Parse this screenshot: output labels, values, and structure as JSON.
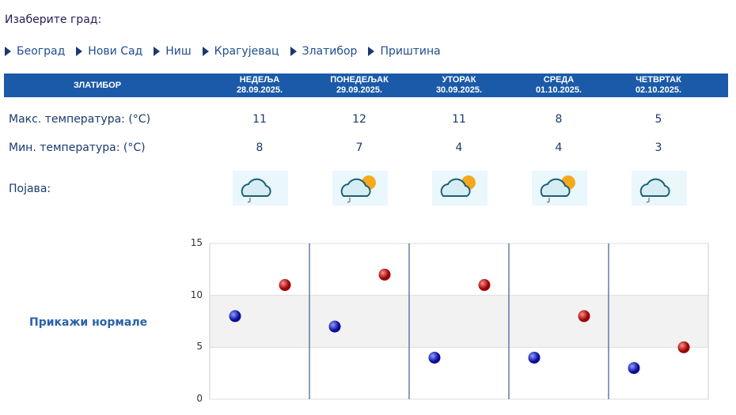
{
  "prompt": "Изаберите град:",
  "cities": [
    "Београд",
    "Нови Сад",
    "Ниш",
    "Крагујевац",
    "Златибор",
    "Приштина"
  ],
  "table": {
    "city": "ЗЛАТИБОР",
    "days": [
      {
        "day": "НЕДЕЉА",
        "date": "28.09.2025.",
        "max": "11",
        "min": "8",
        "icon": "cloud-rain-icon"
      },
      {
        "day": "ПОНЕДЕЉАК",
        "date": "29.09.2025.",
        "max": "12",
        "min": "7",
        "icon": "partly-cloudy-rain-icon"
      },
      {
        "day": "УТОРАК",
        "date": "30.09.2025.",
        "max": "11",
        "min": "4",
        "icon": "partly-cloudy-icon"
      },
      {
        "day": "СРЕДА",
        "date": "01.10.2025.",
        "max": "8",
        "min": "4",
        "icon": "partly-cloudy-rain-icon"
      },
      {
        "day": "ЧЕТВРТАК",
        "date": "02.10.2025.",
        "max": "5",
        "min": "3",
        "icon": "cloud-rain-icon"
      }
    ],
    "max_label": "Макс. температура: (°C)",
    "min_label": "Мин. температура: (°C)",
    "phen_label": "Појава:"
  },
  "show_normals": "Прикажи нормале",
  "chart_data": {
    "type": "scatter",
    "ylim": [
      0,
      15
    ],
    "yticks": [
      "0",
      "5",
      "10",
      "15"
    ],
    "series": [
      {
        "color": "#0a0acc",
        "values": [
          8,
          7,
          4,
          4,
          3
        ]
      },
      {
        "color": "#cc0000",
        "values": [
          11,
          12,
          11,
          8,
          5
        ]
      }
    ],
    "band": [
      5,
      10
    ],
    "grid": true
  }
}
